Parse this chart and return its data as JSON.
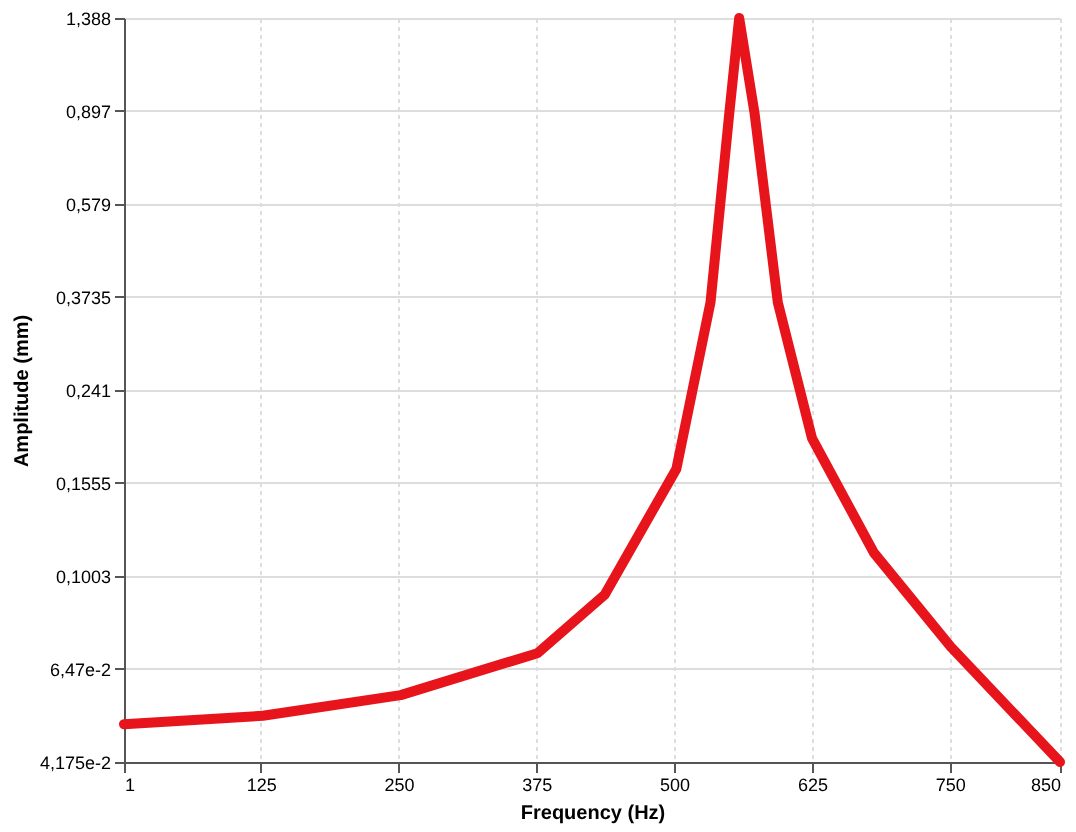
{
  "chart_data": {
    "type": "line",
    "xlabel": "Frequency (Hz)",
    "ylabel": "Amplitude (mm)",
    "log": "y",
    "grid": true,
    "marker": "none",
    "line_style": "solid",
    "xlim": [
      1,
      850
    ],
    "xticks": [
      1,
      125,
      250,
      375,
      500,
      625,
      750,
      850
    ],
    "ylim": [
      0.04175,
      1.388
    ],
    "yticks": [
      {
        "value": 0.04175,
        "label": "4,175e-2"
      },
      {
        "value": 0.0647,
        "label": "6,47e-2"
      },
      {
        "value": 0.1003,
        "label": "0,1003"
      },
      {
        "value": 0.1555,
        "label": "0,1555"
      },
      {
        "value": 0.241,
        "label": "0,241"
      },
      {
        "value": 0.3735,
        "label": "0,3735"
      },
      {
        "value": 0.579,
        "label": "0,579"
      },
      {
        "value": 0.897,
        "label": "0,897"
      },
      {
        "value": 1.388,
        "label": "1,388"
      }
    ],
    "x": [
      1,
      127,
      252,
      376,
      437,
      502,
      533,
      550,
      559,
      573,
      594,
      625,
      681,
      751,
      850
    ],
    "series": [
      {
        "color": "#e8141c",
        "values": [
          0.0499,
          0.0519,
          0.0572,
          0.0697,
          0.0918,
          0.166,
          0.364,
          0.885,
          1.388,
          0.885,
          0.364,
          0.192,
          0.112,
          0.0718,
          0.04175
        ]
      }
    ]
  }
}
